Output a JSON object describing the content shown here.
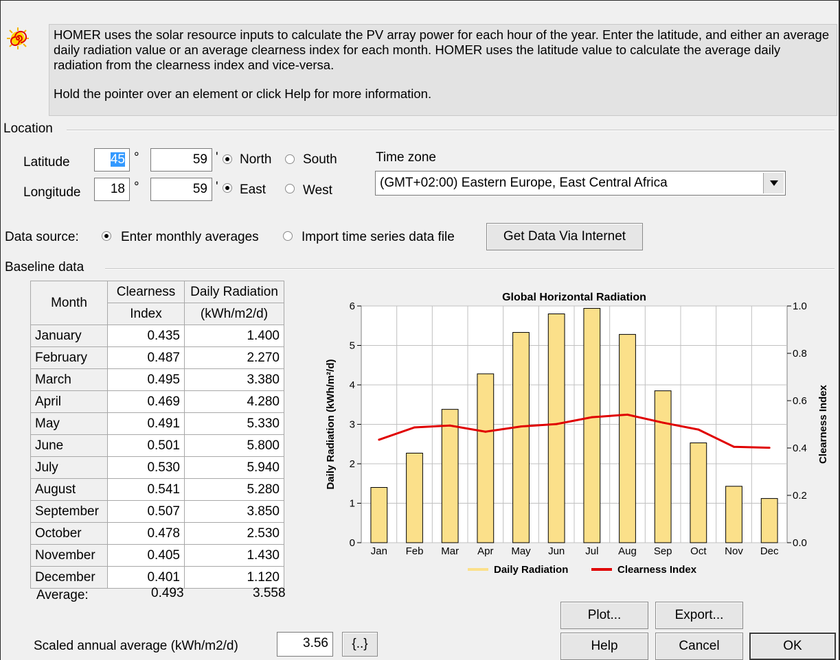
{
  "info": {
    "text1": "HOMER uses the solar resource inputs to calculate the PV array power for each hour of the year. Enter the latitude, and either an average daily radiation value or an average clearness index for each month. HOMER uses the latitude value to calculate the average daily radiation from the clearness index and vice-versa.",
    "text2": "Hold the pointer over an element or click Help for more information."
  },
  "location": {
    "group_label": "Location",
    "latitude_label": "Latitude",
    "lat_deg": "45",
    "lat_min": "59",
    "deg_symbol": "°",
    "min_symbol": "'",
    "north_label": "North",
    "south_label": "South",
    "longitude_label": "Longitude",
    "lon_deg": "18",
    "lon_min": "59",
    "east_label": "East",
    "west_label": "West",
    "timezone_label": "Time zone",
    "timezone_value": "(GMT+02:00) Eastern Europe, East Central Africa"
  },
  "datasource": {
    "label": "Data source:",
    "opt1": "Enter monthly averages",
    "opt2": "Import time series data file",
    "button": "Get Data Via Internet"
  },
  "baseline": {
    "group_label": "Baseline data",
    "col_month": "Month",
    "col_clear_1": "Clearness",
    "col_clear_2": "Index",
    "col_rad_1": "Daily Radiation",
    "col_rad_2": "(kWh/m2/d)",
    "rows": [
      {
        "month": "January",
        "ci": "0.435",
        "rad": "1.400"
      },
      {
        "month": "February",
        "ci": "0.487",
        "rad": "2.270"
      },
      {
        "month": "March",
        "ci": "0.495",
        "rad": "3.380"
      },
      {
        "month": "April",
        "ci": "0.469",
        "rad": "4.280"
      },
      {
        "month": "May",
        "ci": "0.491",
        "rad": "5.330"
      },
      {
        "month": "June",
        "ci": "0.501",
        "rad": "5.800"
      },
      {
        "month": "July",
        "ci": "0.530",
        "rad": "5.940"
      },
      {
        "month": "August",
        "ci": "0.541",
        "rad": "5.280"
      },
      {
        "month": "September",
        "ci": "0.507",
        "rad": "3.850"
      },
      {
        "month": "October",
        "ci": "0.478",
        "rad": "2.530"
      },
      {
        "month": "November",
        "ci": "0.405",
        "rad": "1.430"
      },
      {
        "month": "December",
        "ci": "0.401",
        "rad": "1.120"
      }
    ],
    "average_label": "Average:",
    "average_ci": "0.493",
    "average_rad": "3.558"
  },
  "scaled": {
    "label": "Scaled annual average (kWh/m2/d)",
    "value": "3.56",
    "button": "{..}"
  },
  "buttons": {
    "plot": "Plot...",
    "export": "Export...",
    "help": "Help",
    "cancel": "Cancel",
    "ok": "OK"
  },
  "colors": {
    "bar_fill": "#fbe08a",
    "bar_stroke": "#000000",
    "line": "#e00000",
    "plot_bg": "#ffffff",
    "grid": "#c0c0c0"
  },
  "chart_data": {
    "type": "bar",
    "title": "Global Horizontal Radiation",
    "categories": [
      "Jan",
      "Feb",
      "Mar",
      "Apr",
      "May",
      "Jun",
      "Jul",
      "Aug",
      "Sep",
      "Oct",
      "Nov",
      "Dec"
    ],
    "series": [
      {
        "name": "Daily Radiation",
        "type": "bar",
        "axis": "left",
        "values": [
          1.4,
          2.27,
          3.38,
          4.28,
          5.33,
          5.8,
          5.94,
          5.28,
          3.85,
          2.53,
          1.43,
          1.12
        ]
      },
      {
        "name": "Clearness Index",
        "type": "line",
        "axis": "right",
        "values": [
          0.435,
          0.487,
          0.495,
          0.469,
          0.491,
          0.501,
          0.53,
          0.541,
          0.507,
          0.478,
          0.405,
          0.401
        ]
      }
    ],
    "ylabel": "Daily Radiation (kWh/m²/d)",
    "ylabel_right": "Clearness Index",
    "ylim": [
      0,
      6
    ],
    "ylim_right": [
      0,
      1.0
    ],
    "yticks": [
      "0",
      "1",
      "2",
      "3",
      "4",
      "5",
      "6"
    ],
    "yticks_right": [
      "0.0",
      "0.2",
      "0.4",
      "0.6",
      "0.8",
      "1.0"
    ],
    "grid": true,
    "legend": "bottom"
  }
}
